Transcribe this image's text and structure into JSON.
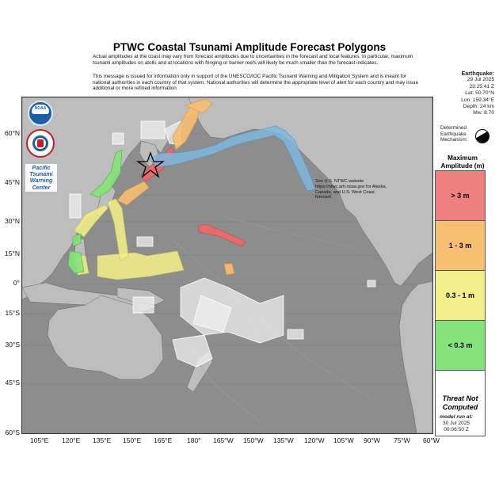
{
  "title": "PTWC Coastal Tsunami Amplitude Forecast Polygons",
  "paragraph1": "Actual amplitudes at the coast may vary from forecast amplitudes due to uncertainties in the forecast and local features. In particular, maximum tsunami amplitudes on atolls and at locations with fringing or barrier reefs will likely be much smaller than the forecast indicates.",
  "paragraph2": "This message is issued for information only in support of the UNESCO/IOC Pacific Tsunami Warning and Mitigation System and is meant for national authorities in each country of that system. National authorities will determine the appropriate level of alert for each country and may issue additional or more refined information.",
  "earthquake": {
    "heading": "Earthquake:",
    "date": "29 Jul 2025",
    "time": "23:25:41 Z",
    "lat": "Lat: 50.70°N",
    "lon": "Lon: 159.34°E",
    "depth": "Depth: 24 km",
    "magnitude": "Mw: 8.70"
  },
  "mechanism_label": "Determined Earthquake Mechanism:",
  "legend": {
    "title": "Maximum Amplitude (m)",
    "items": [
      {
        "label": "> 3 m",
        "color": "#f08080"
      },
      {
        "label": "1 - 3 m",
        "color": "#f7bf72"
      },
      {
        "label": "0.3 - 1 m",
        "color": "#f2ee8a"
      },
      {
        "label": "< 0.3 m",
        "color": "#86e27a"
      },
      {
        "label": "Threat Not Computed",
        "color": "#ffffff"
      }
    ]
  },
  "model_run": {
    "label": "model run at:",
    "date": "30 Jul 2025",
    "time": "00:06:50 Z"
  },
  "logos": {
    "noaa": "NOAA",
    "ptwc": "Pacific Tsunami Warning Center"
  },
  "notice": "See U.S. NTWC website https://ntwc.arh.noaa.gov for Alaska, Canada, and U.S. West Coast forecast.",
  "lat_ticks": [
    "60°N",
    "45°N",
    "30°N",
    "15°N",
    "0°",
    "15°S",
    "30°S",
    "45°S",
    "60°S"
  ],
  "lon_ticks": [
    "105°E",
    "120°E",
    "135°E",
    "150°E",
    "165°E",
    "180°",
    "165°W",
    "150°W",
    "135°W",
    "120°W",
    "105°W",
    "90°W",
    "75°W",
    "60°W"
  ],
  "colors": {
    "ocean": "#8a8a8a",
    "land": "#b9b9b9",
    "alaska_band": "#7fb9e0"
  }
}
